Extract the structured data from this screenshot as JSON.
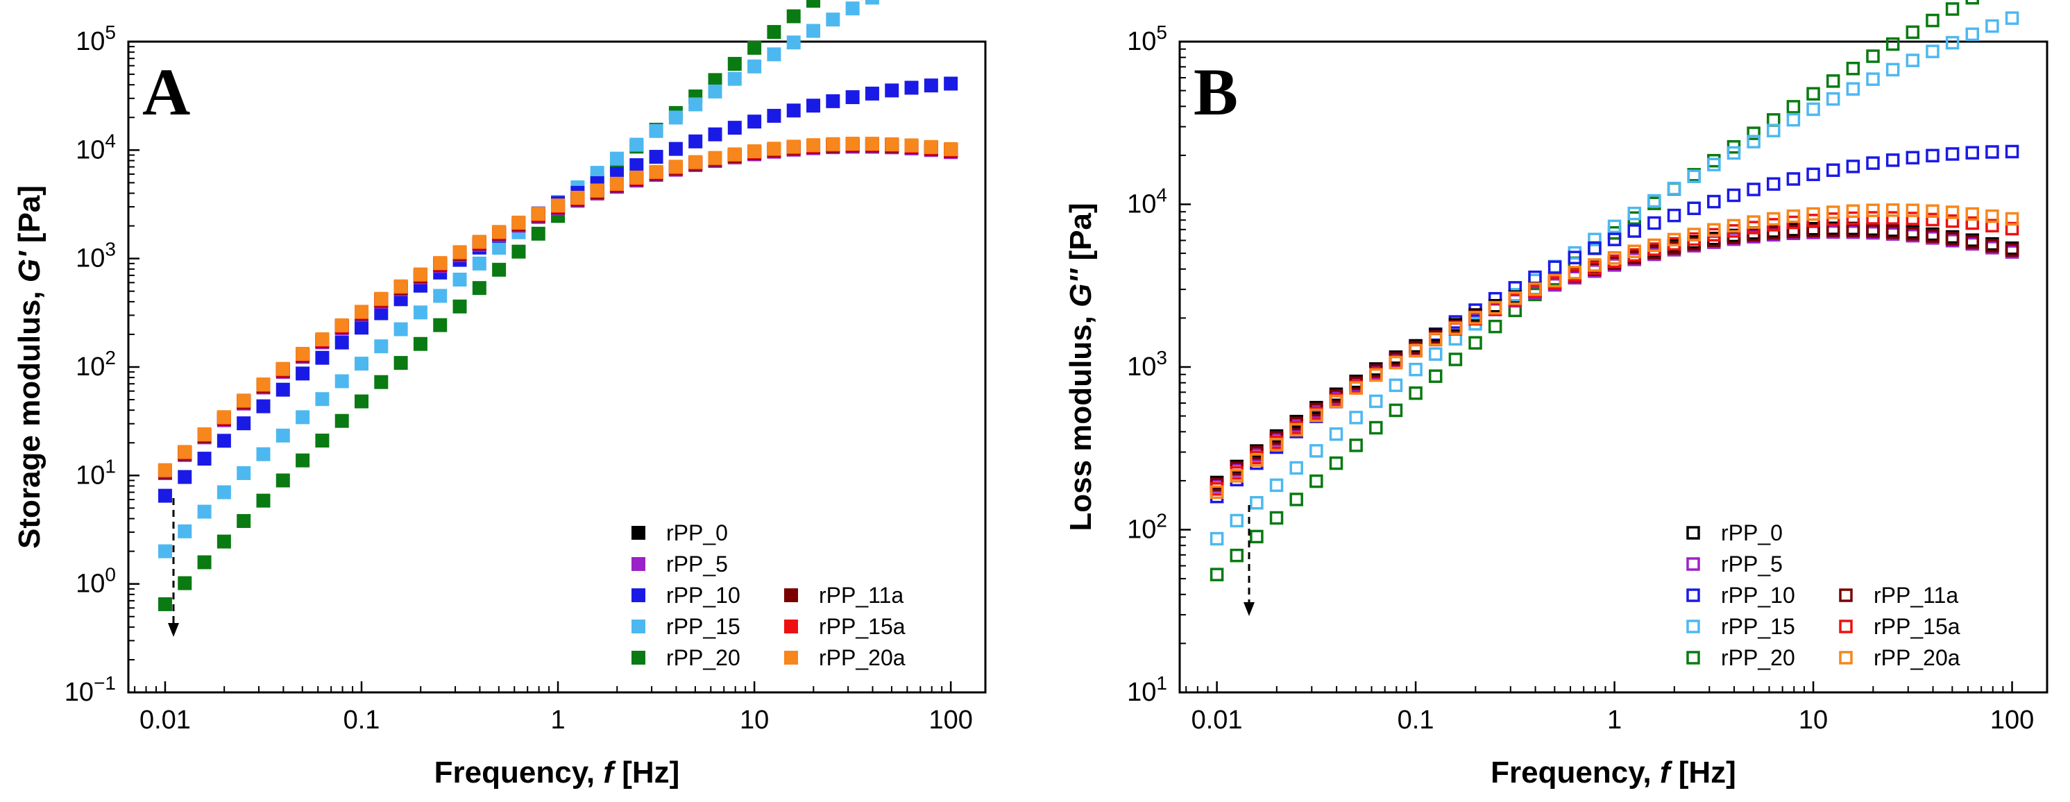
{
  "chart_data": [
    {
      "panel": "A",
      "type": "scatter",
      "marker": "filled-square",
      "xlabel_prefix": "Frequency, ",
      "xlabel_italic": "f",
      "xlabel_suffix": " [Hz]",
      "ylabel_prefix": "Storage modulus, ",
      "ylabel_italic": "G'",
      "ylabel_suffix": " [Pa]",
      "xscale": "log",
      "yscale": "log",
      "xlim": [
        0.0065,
        150
      ],
      "ylim": [
        0.1,
        100000
      ],
      "x_ticks": [
        {
          "v": 0.01,
          "label": "0.01"
        },
        {
          "v": 0.1,
          "label": "0.1"
        },
        {
          "v": 1,
          "label": "1"
        },
        {
          "v": 10,
          "label": "10"
        },
        {
          "v": 100,
          "label": "100"
        }
      ],
      "y_ticks": [
        {
          "v": 0.1,
          "base": "10",
          "exp": "−1"
        },
        {
          "v": 1,
          "base": "10",
          "exp": "0"
        },
        {
          "v": 10,
          "base": "10",
          "exp": "1"
        },
        {
          "v": 100,
          "base": "10",
          "exp": "2"
        },
        {
          "v": 1000,
          "base": "10",
          "exp": "3"
        },
        {
          "v": 10000,
          "base": "10",
          "exp": "4"
        },
        {
          "v": 100000,
          "base": "10",
          "exp": "5"
        }
      ],
      "legend_position": "bottom-right",
      "annotation": "dashed arrow pointing down near 0.01 Hz",
      "series": [
        {
          "name": "rPP_0",
          "color": "#000000",
          "a": 11,
          "b": 1.7,
          "c": 0.24
        },
        {
          "name": "rPP_5",
          "color": "#9b22c8",
          "a": 10.5,
          "b": 1.7,
          "c": 0.24
        },
        {
          "name": "rPP_10",
          "color": "#1a1ae6",
          "a": 6.5,
          "b": 1.75,
          "c": 0.2
        },
        {
          "name": "rPP_15",
          "color": "#4db8f0",
          "a": 2.0,
          "b": 1.85,
          "c": 0.12
        },
        {
          "name": "rPP_20",
          "color": "#0a7a12",
          "a": 0.65,
          "b": 1.95,
          "c": 0.08
        },
        {
          "name": "rPP_11a",
          "color": "#7a0000",
          "a": 10.8,
          "b": 1.7,
          "c": 0.24
        },
        {
          "name": "rPP_15a",
          "color": "#ee1010",
          "a": 11,
          "b": 1.7,
          "c": 0.24
        },
        {
          "name": "rPP_20a",
          "color": "#f7861c",
          "a": 11.2,
          "b": 1.7,
          "c": 0.24
        }
      ]
    },
    {
      "panel": "B",
      "type": "scatter",
      "marker": "open-square",
      "xlabel_prefix": "Frequency, ",
      "xlabel_italic": "f",
      "xlabel_suffix": " [Hz]",
      "ylabel_prefix": "Loss modulus, ",
      "ylabel_italic": "G''",
      "ylabel_suffix": " [Pa]",
      "xscale": "log",
      "yscale": "log",
      "xlim": [
        0.0065,
        150
      ],
      "ylim": [
        10,
        100000
      ],
      "x_ticks": [
        {
          "v": 0.01,
          "label": "0.01"
        },
        {
          "v": 0.1,
          "label": "0.1"
        },
        {
          "v": 1,
          "label": "1"
        },
        {
          "v": 10,
          "label": "10"
        },
        {
          "v": 100,
          "label": "100"
        }
      ],
      "y_ticks": [
        {
          "v": 10,
          "base": "10",
          "exp": "1"
        },
        {
          "v": 100,
          "base": "10",
          "exp": "2"
        },
        {
          "v": 1000,
          "base": "10",
          "exp": "3"
        },
        {
          "v": 10000,
          "base": "10",
          "exp": "4"
        },
        {
          "v": 100000,
          "base": "10",
          "exp": "5"
        }
      ],
      "legend_position": "bottom-right",
      "annotation": "dashed arrow pointing down near 0.015 Hz",
      "series": [
        {
          "name": "rPP_0",
          "color": "#000000",
          "a": 195,
          "b": 1.0,
          "c": 0.16
        },
        {
          "name": "rPP_5",
          "color": "#9b22c8",
          "a": 185,
          "b": 1.0,
          "c": 0.16
        },
        {
          "name": "rPP_10",
          "color": "#1a1ae6",
          "a": 160,
          "b": 1.05,
          "c": 0.13
        },
        {
          "name": "rPP_15",
          "color": "#4db8f0",
          "a": 88,
          "b": 1.12,
          "c": 0.08
        },
        {
          "name": "rPP_20",
          "color": "#0a7a12",
          "a": 53,
          "b": 1.18,
          "c": 0.065
        },
        {
          "name": "rPP_11a",
          "color": "#7a0000",
          "a": 190,
          "b": 1.0,
          "c": 0.16
        },
        {
          "name": "rPP_15a",
          "color": "#ee1010",
          "a": 178,
          "b": 1.0,
          "c": 0.15
        },
        {
          "name": "rPP_20a",
          "color": "#f7861c",
          "a": 170,
          "b": 1.02,
          "c": 0.15
        }
      ]
    }
  ]
}
